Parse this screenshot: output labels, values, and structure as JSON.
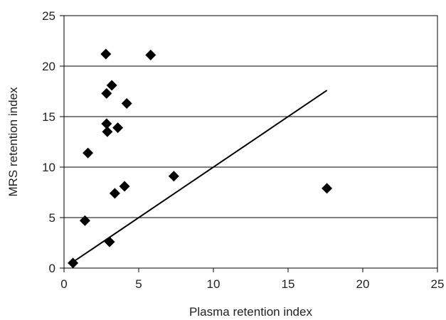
{
  "chart_data": {
    "type": "scatter",
    "xlabel": "Plasma retention index",
    "ylabel": "MRS retention index",
    "xlim": [
      0,
      25
    ],
    "ylim": [
      0,
      25
    ],
    "xticks": [
      "0",
      "5",
      "10",
      "15",
      "20",
      "25"
    ],
    "yticks": [
      "0",
      "5",
      "10",
      "15",
      "20",
      "25"
    ],
    "grid": "horizontal",
    "marker": "diamond",
    "marker_color": "#000000",
    "points": [
      {
        "x": 0.6,
        "y": 0.5
      },
      {
        "x": 1.4,
        "y": 4.7
      },
      {
        "x": 1.6,
        "y": 11.4
      },
      {
        "x": 2.8,
        "y": 21.2
      },
      {
        "x": 2.85,
        "y": 17.3
      },
      {
        "x": 2.85,
        "y": 14.3
      },
      {
        "x": 2.9,
        "y": 13.5
      },
      {
        "x": 3.05,
        "y": 2.6
      },
      {
        "x": 3.2,
        "y": 18.1
      },
      {
        "x": 3.4,
        "y": 7.4
      },
      {
        "x": 3.6,
        "y": 13.9
      },
      {
        "x": 4.05,
        "y": 8.1
      },
      {
        "x": 4.2,
        "y": 16.3
      },
      {
        "x": 5.8,
        "y": 21.1
      },
      {
        "x": 7.35,
        "y": 9.1
      },
      {
        "x": 17.6,
        "y": 7.9
      }
    ],
    "trendline": {
      "x1": 0.6,
      "y1": 0.6,
      "x2": 17.6,
      "y2": 17.6
    }
  }
}
